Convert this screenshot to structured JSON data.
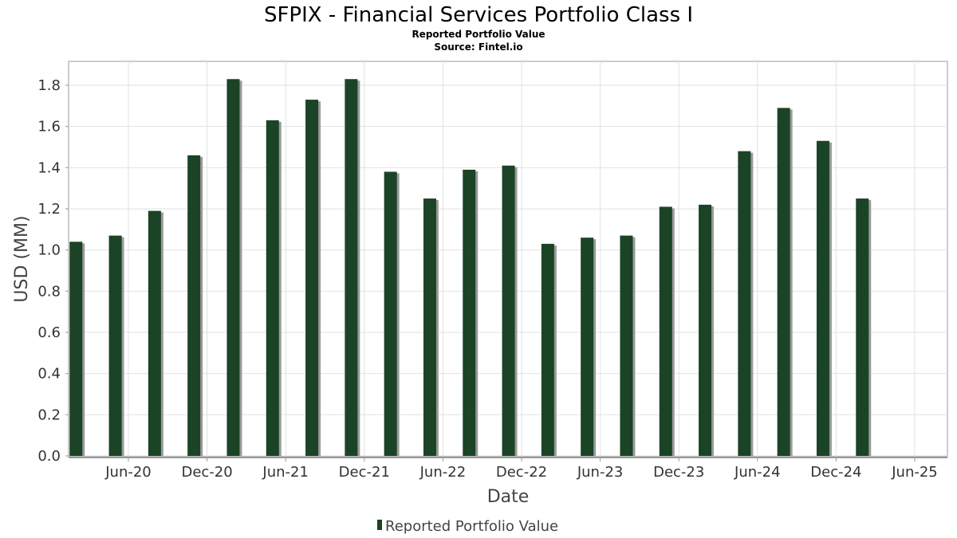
{
  "chart_data": {
    "type": "bar",
    "title": "SFPIX - Financial Services Portfolio Class I",
    "subtitle": "Reported Portfolio Value",
    "source": "Source: Fintel.io",
    "xlabel": "Date",
    "ylabel": "USD (MM)",
    "ylim": [
      0,
      1.9
    ],
    "yticks": [
      "0.0",
      "0.2",
      "0.4",
      "0.6",
      "0.8",
      "1.0",
      "1.2",
      "1.4",
      "1.6",
      "1.8"
    ],
    "xticks": [
      "Jun-20",
      "Dec-20",
      "Jun-21",
      "Dec-21",
      "Jun-22",
      "Dec-22",
      "Jun-23",
      "Dec-23",
      "Jun-24",
      "Dec-24",
      "Jun-25"
    ],
    "grid": true,
    "legend_position": "bottom-center",
    "bar_color": "#1b4326",
    "shadow_color": "#9a9a9a",
    "series": [
      {
        "name": "Reported Portfolio Value",
        "x": [
          "2020-03",
          "2020-06",
          "2020-09",
          "2020-12",
          "2021-03",
          "2021-06",
          "2021-09",
          "2021-12",
          "2022-03",
          "2022-06",
          "2022-09",
          "2022-12",
          "2023-03",
          "2023-06",
          "2023-09",
          "2023-12",
          "2024-03",
          "2024-06",
          "2024-09",
          "2024-12",
          "2025-03"
        ],
        "values": [
          1.04,
          1.07,
          1.19,
          1.46,
          1.83,
          1.63,
          1.73,
          1.83,
          1.38,
          1.25,
          1.39,
          1.41,
          1.03,
          1.06,
          1.07,
          1.21,
          1.22,
          1.48,
          1.69,
          1.53,
          1.25
        ]
      }
    ]
  }
}
